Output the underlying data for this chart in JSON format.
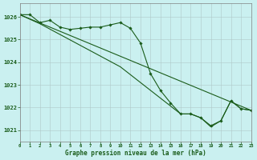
{
  "title": "Graphe pression niveau de la mer (hPa)",
  "bg_color": "#caf0f0",
  "line_color": "#1a5c1a",
  "xlim": [
    0,
    23
  ],
  "ylim": [
    1020.5,
    1026.6
  ],
  "yticks": [
    1021,
    1022,
    1023,
    1024,
    1025,
    1026
  ],
  "xticks": [
    0,
    1,
    2,
    3,
    4,
    5,
    6,
    7,
    8,
    9,
    10,
    11,
    12,
    13,
    14,
    15,
    16,
    17,
    18,
    19,
    20,
    21,
    22,
    23
  ],
  "series1_x": [
    0,
    1,
    2,
    3,
    4,
    5,
    6,
    7,
    8,
    9,
    10,
    11,
    12,
    13,
    14,
    15,
    16,
    17,
    18,
    19,
    20,
    21,
    22,
    23
  ],
  "series1_y": [
    1026.1,
    1026.1,
    1025.75,
    1025.85,
    1025.55,
    1025.45,
    1025.5,
    1025.55,
    1025.55,
    1025.65,
    1025.75,
    1025.5,
    1024.85,
    1023.5,
    1022.75,
    1022.2,
    1021.72,
    1021.72,
    1021.55,
    1021.2,
    1021.42,
    1022.3,
    1021.95,
    1021.88
  ],
  "series2_x": [
    0,
    2,
    10,
    16,
    17,
    18,
    19,
    20,
    21,
    22,
    23
  ],
  "series2_y": [
    1026.1,
    1025.7,
    1023.8,
    1021.72,
    1021.72,
    1021.55,
    1021.15,
    1021.42,
    1022.3,
    1021.95,
    1021.88
  ],
  "series3_x": [
    0,
    23
  ],
  "series3_y": [
    1026.1,
    1021.88
  ]
}
